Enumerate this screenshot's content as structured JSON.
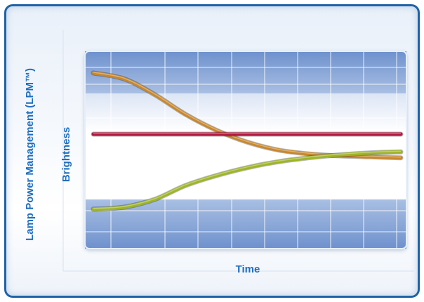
{
  "chart_data": {
    "type": "line",
    "title": "",
    "outer_label": "Lamp Power Management (LPM™)",
    "ylabel": "Brightness",
    "xlabel": "Time",
    "grid": true,
    "legend": "none",
    "x": [
      0,
      1,
      2,
      3,
      4,
      5,
      6,
      7,
      8,
      9,
      10
    ],
    "ylim": [
      0,
      100
    ],
    "series": [
      {
        "color": "#c9872b",
        "values": [
          89,
          86,
          78,
          68,
          60,
          54,
          50,
          48,
          47,
          46.5,
          46
        ]
      },
      {
        "color": "#b5173f",
        "values": [
          58,
          58,
          58,
          58,
          58,
          58,
          58,
          58,
          58,
          58,
          58
        ]
      },
      {
        "color": "#9fb526",
        "values": [
          20,
          21,
          25,
          32,
          37,
          41,
          44,
          46,
          47.5,
          48.5,
          49
        ]
      }
    ],
    "colors": {
      "frame_border": "#1f63a8",
      "label_text": "#1f6fbf",
      "panel_blue": "#6f93cf",
      "panel_white": "#ffffff"
    }
  }
}
